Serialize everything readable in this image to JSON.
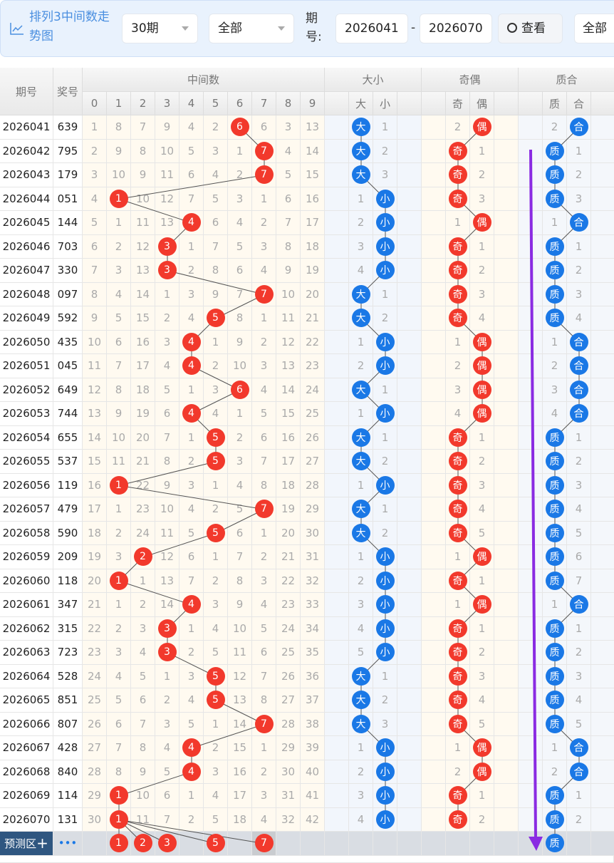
{
  "header": {
    "title": "排列3中间数走势图",
    "icon": "line-chart-icon",
    "periods_select": "30期",
    "filter_select": "全部",
    "period_label": "期号:",
    "from": "2026041",
    "dash": "-",
    "to": "2026070",
    "view_button": "查看",
    "view_icon": "search-icon",
    "all_button": "全部"
  },
  "table": {
    "col_period": "期号",
    "col_number": "奖号",
    "group_mid": "中间数",
    "group_dx": "大小",
    "group_jo": "奇偶",
    "group_zh": "质合",
    "digits": [
      "0",
      "1",
      "2",
      "3",
      "4",
      "5",
      "6",
      "7",
      "8",
      "9"
    ],
    "dx": [
      "大",
      "小"
    ],
    "jo": [
      "奇",
      "偶"
    ],
    "zh": [
      "质",
      "合"
    ]
  },
  "colors": {
    "red": "#f2392c",
    "blue": "#1a78e6",
    "arrow": "#8a2be2"
  },
  "rows": [
    {
      "p": "2026041",
      "n": "639",
      "d": [
        1,
        8,
        7,
        9,
        4,
        2,
        6,
        6,
        3,
        13
      ],
      "h": 6,
      "dx": [
        "大",
        "1"
      ],
      "dxh": 0,
      "jo": [
        "2",
        "偶"
      ],
      "joh": 1,
      "zh": [
        "2",
        "合"
      ],
      "zhh": 1
    },
    {
      "p": "2026042",
      "n": "795",
      "d": [
        2,
        9,
        8,
        10,
        5,
        3,
        1,
        7,
        4,
        14
      ],
      "h": 7,
      "dx": [
        "大",
        "2"
      ],
      "dxh": 0,
      "jo": [
        "奇",
        "1"
      ],
      "joh": 0,
      "zh": [
        "质",
        "1"
      ],
      "zhh": 0
    },
    {
      "p": "2026043",
      "n": "179",
      "d": [
        3,
        10,
        9,
        11,
        6,
        4,
        2,
        7,
        5,
        15
      ],
      "h": 7,
      "dx": [
        "大",
        "3"
      ],
      "dxh": 0,
      "jo": [
        "奇",
        "2"
      ],
      "joh": 0,
      "zh": [
        "质",
        "2"
      ],
      "zhh": 0
    },
    {
      "p": "2026044",
      "n": "051",
      "d": [
        4,
        1,
        10,
        12,
        7,
        5,
        3,
        1,
        6,
        16
      ],
      "h": 1,
      "dx": [
        "1",
        "小"
      ],
      "dxh": 1,
      "jo": [
        "奇",
        "3"
      ],
      "joh": 0,
      "zh": [
        "质",
        "3"
      ],
      "zhh": 0
    },
    {
      "p": "2026045",
      "n": "144",
      "d": [
        5,
        1,
        11,
        13,
        4,
        6,
        4,
        2,
        7,
        17
      ],
      "h": 4,
      "dx": [
        "2",
        "小"
      ],
      "dxh": 1,
      "jo": [
        "1",
        "偶"
      ],
      "joh": 1,
      "zh": [
        "1",
        "合"
      ],
      "zhh": 1
    },
    {
      "p": "2026046",
      "n": "703",
      "d": [
        6,
        2,
        12,
        3,
        1,
        7,
        5,
        3,
        8,
        18
      ],
      "h": 3,
      "dx": [
        "3",
        "小"
      ],
      "dxh": 1,
      "jo": [
        "奇",
        "1"
      ],
      "joh": 0,
      "zh": [
        "质",
        "1"
      ],
      "zhh": 0
    },
    {
      "p": "2026047",
      "n": "330",
      "d": [
        7,
        3,
        13,
        3,
        2,
        8,
        6,
        4,
        9,
        19
      ],
      "h": 3,
      "dx": [
        "4",
        "小"
      ],
      "dxh": 1,
      "jo": [
        "奇",
        "2"
      ],
      "joh": 0,
      "zh": [
        "质",
        "2"
      ],
      "zhh": 0
    },
    {
      "p": "2026048",
      "n": "097",
      "d": [
        8,
        4,
        14,
        1,
        3,
        9,
        7,
        7,
        10,
        20
      ],
      "h": 7,
      "dx": [
        "大",
        "1"
      ],
      "dxh": 0,
      "jo": [
        "奇",
        "3"
      ],
      "joh": 0,
      "zh": [
        "质",
        "3"
      ],
      "zhh": 0
    },
    {
      "p": "2026049",
      "n": "592",
      "d": [
        9,
        5,
        15,
        2,
        4,
        5,
        8,
        1,
        11,
        21
      ],
      "h": 5,
      "dx": [
        "大",
        "2"
      ],
      "dxh": 0,
      "jo": [
        "奇",
        "4"
      ],
      "joh": 0,
      "zh": [
        "质",
        "4"
      ],
      "zhh": 0
    },
    {
      "p": "2026050",
      "n": "435",
      "d": [
        10,
        6,
        16,
        3,
        4,
        1,
        9,
        2,
        12,
        22
      ],
      "h": 4,
      "dx": [
        "1",
        "小"
      ],
      "dxh": 1,
      "jo": [
        "1",
        "偶"
      ],
      "joh": 1,
      "zh": [
        "1",
        "合"
      ],
      "zhh": 1
    },
    {
      "p": "2026051",
      "n": "045",
      "d": [
        11,
        7,
        17,
        4,
        4,
        2,
        10,
        3,
        13,
        23
      ],
      "h": 4,
      "dx": [
        "2",
        "小"
      ],
      "dxh": 1,
      "jo": [
        "2",
        "偶"
      ],
      "joh": 1,
      "zh": [
        "2",
        "合"
      ],
      "zhh": 1
    },
    {
      "p": "2026052",
      "n": "649",
      "d": [
        12,
        8,
        18,
        5,
        1,
        3,
        6,
        4,
        14,
        24
      ],
      "h": 6,
      "dx": [
        "大",
        "1"
      ],
      "dxh": 0,
      "jo": [
        "3",
        "偶"
      ],
      "joh": 1,
      "zh": [
        "3",
        "合"
      ],
      "zhh": 1
    },
    {
      "p": "2026053",
      "n": "744",
      "d": [
        13,
        9,
        19,
        6,
        4,
        4,
        1,
        5,
        15,
        25
      ],
      "h": 4,
      "dx": [
        "1",
        "小"
      ],
      "dxh": 1,
      "jo": [
        "4",
        "偶"
      ],
      "joh": 1,
      "zh": [
        "4",
        "合"
      ],
      "zhh": 1
    },
    {
      "p": "2026054",
      "n": "655",
      "d": [
        14,
        10,
        20,
        7,
        1,
        5,
        2,
        6,
        16,
        26
      ],
      "h": 5,
      "dx": [
        "大",
        "1"
      ],
      "dxh": 0,
      "jo": [
        "奇",
        "1"
      ],
      "joh": 0,
      "zh": [
        "质",
        "1"
      ],
      "zhh": 0
    },
    {
      "p": "2026055",
      "n": "537",
      "d": [
        15,
        11,
        21,
        8,
        2,
        5,
        3,
        7,
        17,
        27
      ],
      "h": 5,
      "dx": [
        "大",
        "2"
      ],
      "dxh": 0,
      "jo": [
        "奇",
        "2"
      ],
      "joh": 0,
      "zh": [
        "质",
        "2"
      ],
      "zhh": 0
    },
    {
      "p": "2026056",
      "n": "119",
      "d": [
        16,
        1,
        22,
        9,
        3,
        1,
        4,
        8,
        18,
        28
      ],
      "h": 1,
      "dx": [
        "1",
        "小"
      ],
      "dxh": 1,
      "jo": [
        "奇",
        "3"
      ],
      "joh": 0,
      "zh": [
        "质",
        "3"
      ],
      "zhh": 0
    },
    {
      "p": "2026057",
      "n": "479",
      "d": [
        17,
        1,
        23,
        10,
        4,
        2,
        5,
        7,
        19,
        29
      ],
      "h": 7,
      "dx": [
        "大",
        "1"
      ],
      "dxh": 0,
      "jo": [
        "奇",
        "4"
      ],
      "joh": 0,
      "zh": [
        "质",
        "4"
      ],
      "zhh": 0
    },
    {
      "p": "2026058",
      "n": "590",
      "d": [
        18,
        2,
        24,
        11,
        5,
        5,
        6,
        1,
        20,
        30
      ],
      "h": 5,
      "dx": [
        "大",
        "2"
      ],
      "dxh": 0,
      "jo": [
        "奇",
        "5"
      ],
      "joh": 0,
      "zh": [
        "质",
        "5"
      ],
      "zhh": 0
    },
    {
      "p": "2026059",
      "n": "209",
      "d": [
        19,
        3,
        2,
        12,
        6,
        1,
        7,
        2,
        21,
        31
      ],
      "h": 2,
      "dx": [
        "1",
        "小"
      ],
      "dxh": 1,
      "jo": [
        "1",
        "偶"
      ],
      "joh": 1,
      "zh": [
        "质",
        "6"
      ],
      "zhh": 0
    },
    {
      "p": "2026060",
      "n": "118",
      "d": [
        20,
        1,
        1,
        13,
        7,
        2,
        8,
        3,
        22,
        32
      ],
      "h": 1,
      "dx": [
        "2",
        "小"
      ],
      "dxh": 1,
      "jo": [
        "奇",
        "1"
      ],
      "joh": 0,
      "zh": [
        "质",
        "7"
      ],
      "zhh": 0
    },
    {
      "p": "2026061",
      "n": "347",
      "d": [
        21,
        1,
        2,
        14,
        4,
        3,
        9,
        4,
        23,
        33
      ],
      "h": 4,
      "dx": [
        "3",
        "小"
      ],
      "dxh": 1,
      "jo": [
        "1",
        "偶"
      ],
      "joh": 1,
      "zh": [
        "1",
        "合"
      ],
      "zhh": 1
    },
    {
      "p": "2026062",
      "n": "315",
      "d": [
        22,
        2,
        3,
        3,
        1,
        4,
        10,
        5,
        24,
        34
      ],
      "h": 3,
      "dx": [
        "4",
        "小"
      ],
      "dxh": 1,
      "jo": [
        "奇",
        "1"
      ],
      "joh": 0,
      "zh": [
        "质",
        "1"
      ],
      "zhh": 0
    },
    {
      "p": "2026063",
      "n": "723",
      "d": [
        23,
        3,
        4,
        3,
        2,
        5,
        11,
        6,
        25,
        35
      ],
      "h": 3,
      "dx": [
        "5",
        "小"
      ],
      "dxh": 1,
      "jo": [
        "奇",
        "2"
      ],
      "joh": 0,
      "zh": [
        "质",
        "2"
      ],
      "zhh": 0
    },
    {
      "p": "2026064",
      "n": "528",
      "d": [
        24,
        4,
        5,
        1,
        3,
        5,
        12,
        7,
        26,
        36
      ],
      "h": 5,
      "dx": [
        "大",
        "1"
      ],
      "dxh": 0,
      "jo": [
        "奇",
        "3"
      ],
      "joh": 0,
      "zh": [
        "质",
        "3"
      ],
      "zhh": 0
    },
    {
      "p": "2026065",
      "n": "851",
      "d": [
        25,
        5,
        6,
        2,
        4,
        5,
        13,
        8,
        27,
        37
      ],
      "h": 5,
      "dx": [
        "大",
        "2"
      ],
      "dxh": 0,
      "jo": [
        "奇",
        "4"
      ],
      "joh": 0,
      "zh": [
        "质",
        "4"
      ],
      "zhh": 0
    },
    {
      "p": "2026066",
      "n": "807",
      "d": [
        26,
        6,
        7,
        3,
        5,
        1,
        14,
        7,
        28,
        38
      ],
      "h": 7,
      "dx": [
        "大",
        "3"
      ],
      "dxh": 0,
      "jo": [
        "奇",
        "5"
      ],
      "joh": 0,
      "zh": [
        "质",
        "5"
      ],
      "zhh": 0
    },
    {
      "p": "2026067",
      "n": "428",
      "d": [
        27,
        7,
        8,
        4,
        4,
        2,
        15,
        1,
        29,
        39
      ],
      "h": 4,
      "dx": [
        "1",
        "小"
      ],
      "dxh": 1,
      "jo": [
        "1",
        "偶"
      ],
      "joh": 1,
      "zh": [
        "1",
        "合"
      ],
      "zhh": 1
    },
    {
      "p": "2026068",
      "n": "840",
      "d": [
        28,
        8,
        9,
        5,
        4,
        3,
        16,
        2,
        30,
        40
      ],
      "h": 4,
      "dx": [
        "2",
        "小"
      ],
      "dxh": 1,
      "jo": [
        "2",
        "偶"
      ],
      "joh": 1,
      "zh": [
        "2",
        "合"
      ],
      "zhh": 1
    },
    {
      "p": "2026069",
      "n": "114",
      "d": [
        29,
        1,
        10,
        6,
        1,
        4,
        17,
        3,
        31,
        41
      ],
      "h": 1,
      "dx": [
        "3",
        "小"
      ],
      "dxh": 1,
      "jo": [
        "奇",
        "1"
      ],
      "joh": 0,
      "zh": [
        "质",
        "1"
      ],
      "zhh": 0
    },
    {
      "p": "2026070",
      "n": "131",
      "d": [
        30,
        1,
        11,
        7,
        2,
        5,
        18,
        4,
        32,
        42
      ],
      "h": 1,
      "dx": [
        "4",
        "小"
      ],
      "dxh": 1,
      "jo": [
        "奇",
        "2"
      ],
      "joh": 0,
      "zh": [
        "质",
        "2"
      ],
      "zhh": 0
    }
  ],
  "predict": {
    "label": "预测区",
    "plus_icon": "plus-icon",
    "more": "•••",
    "digits": [
      "1",
      "2",
      "3",
      "5",
      "7"
    ],
    "zh": "质"
  }
}
